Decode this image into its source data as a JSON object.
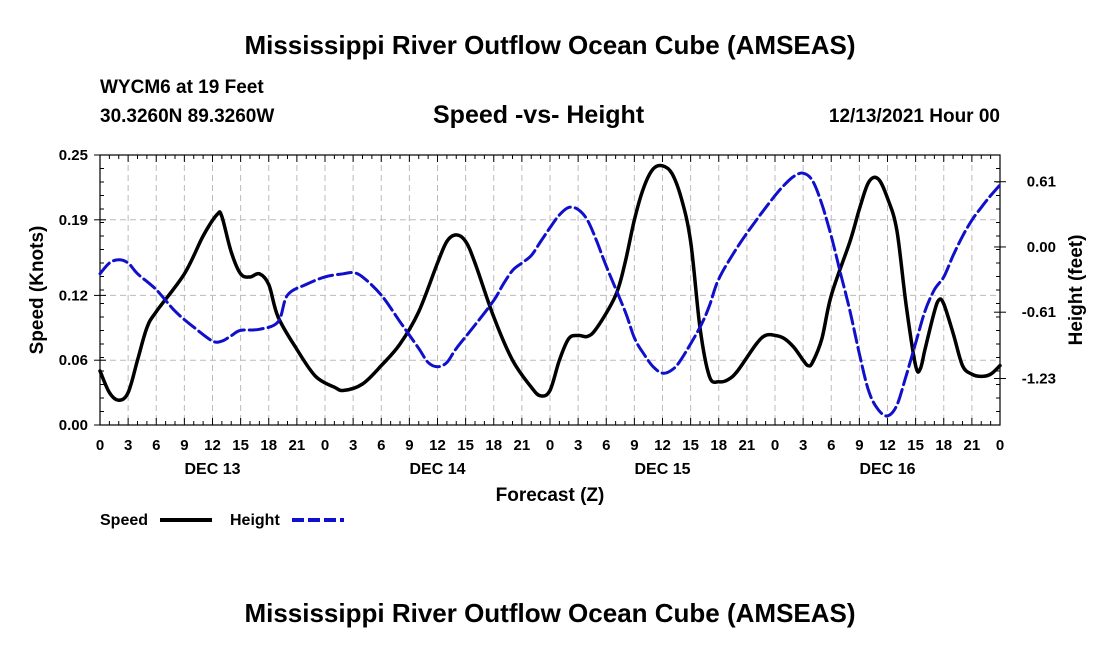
{
  "header": {
    "title": "Mississippi River Outflow Ocean Cube (AMSEAS)",
    "station": "WYCM6 at 19 Feet",
    "coords": "30.3260N  89.3260W",
    "subtitle": "Speed -vs- Height",
    "datetime": "12/13/2021 Hour 00"
  },
  "footer": {
    "title": "Mississippi River Outflow Ocean Cube (AMSEAS)"
  },
  "colors": {
    "speed": "#000000",
    "height": "#1010cc",
    "grid": "#bbbbbb"
  },
  "chart_data": {
    "type": "line",
    "title": "Speed -vs- Height",
    "xlabel": "Forecast (Z)",
    "ylabel_left": "Speed (Knots)",
    "ylabel_right": "Height (feet)",
    "x_range_hours": [
      0,
      96
    ],
    "x_tick_labels": [
      "0",
      "3",
      "6",
      "9",
      "12",
      "15",
      "18",
      "21",
      "0",
      "3",
      "6",
      "9",
      "12",
      "15",
      "18",
      "21",
      "0",
      "3",
      "6",
      "9",
      "12",
      "15",
      "18",
      "21",
      "0",
      "3",
      "6",
      "9",
      "12",
      "15",
      "18",
      "21",
      "0"
    ],
    "day_labels": [
      {
        "hour": 12,
        "label": "DEC 13"
      },
      {
        "hour": 36,
        "label": "DEC 14"
      },
      {
        "hour": 60,
        "label": "DEC 15"
      },
      {
        "hour": 84,
        "label": "DEC 16"
      }
    ],
    "left_axis": {
      "range": [
        0,
        0.25
      ],
      "ticks": [
        0.0,
        0.06,
        0.12,
        0.19,
        0.25
      ],
      "tick_labels": [
        "0.00",
        "0.06",
        "0.12",
        "0.19",
        "0.25"
      ]
    },
    "right_axis": {
      "range": [
        -1.665,
        0.86
      ],
      "ticks": [
        0.61,
        0.0,
        -0.61,
        -1.23
      ],
      "tick_labels": [
        "0.61",
        "0.00",
        "-0.61",
        "-1.23"
      ]
    },
    "legend": [
      {
        "name": "Speed",
        "style": "solid"
      },
      {
        "name": "Height",
        "style": "dashed"
      }
    ],
    "series": [
      {
        "name": "Speed",
        "axis": "left",
        "points": [
          [
            0,
            0.05
          ],
          [
            1,
            0.03
          ],
          [
            2,
            0.023
          ],
          [
            3,
            0.03
          ],
          [
            4,
            0.06
          ],
          [
            5,
            0.09
          ],
          [
            6,
            0.105
          ],
          [
            9,
            0.14
          ],
          [
            11,
            0.175
          ],
          [
            12.5,
            0.195
          ],
          [
            13,
            0.193
          ],
          [
            14,
            0.16
          ],
          [
            15,
            0.14
          ],
          [
            16,
            0.137
          ],
          [
            17,
            0.14
          ],
          [
            18,
            0.13
          ],
          [
            19,
            0.1
          ],
          [
            21,
            0.07
          ],
          [
            23,
            0.045
          ],
          [
            25,
            0.035
          ],
          [
            26,
            0.032
          ],
          [
            28,
            0.038
          ],
          [
            30,
            0.055
          ],
          [
            32,
            0.075
          ],
          [
            34,
            0.105
          ],
          [
            36,
            0.15
          ],
          [
            37,
            0.17
          ],
          [
            38,
            0.176
          ],
          [
            39,
            0.17
          ],
          [
            40,
            0.15
          ],
          [
            42,
            0.1
          ],
          [
            44,
            0.06
          ],
          [
            46,
            0.035
          ],
          [
            47,
            0.027
          ],
          [
            48,
            0.032
          ],
          [
            49,
            0.06
          ],
          [
            50,
            0.08
          ],
          [
            51,
            0.083
          ],
          [
            52,
            0.082
          ],
          [
            53,
            0.09
          ],
          [
            55,
            0.12
          ],
          [
            56,
            0.15
          ],
          [
            57,
            0.19
          ],
          [
            58,
            0.22
          ],
          [
            59,
            0.237
          ],
          [
            60,
            0.24
          ],
          [
            61,
            0.233
          ],
          [
            62,
            0.21
          ],
          [
            63,
            0.17
          ],
          [
            64,
            0.09
          ],
          [
            65,
            0.045
          ],
          [
            66,
            0.04
          ],
          [
            67,
            0.042
          ],
          [
            68,
            0.05
          ],
          [
            70,
            0.075
          ],
          [
            71,
            0.083
          ],
          [
            72,
            0.083
          ],
          [
            73,
            0.08
          ],
          [
            74,
            0.072
          ],
          [
            75,
            0.06
          ],
          [
            75.5,
            0.055
          ],
          [
            76,
            0.058
          ],
          [
            77,
            0.08
          ],
          [
            78,
            0.12
          ],
          [
            80,
            0.17
          ],
          [
            81,
            0.2
          ],
          [
            82,
            0.225
          ],
          [
            83,
            0.228
          ],
          [
            84,
            0.21
          ],
          [
            85,
            0.18
          ],
          [
            86,
            0.11
          ],
          [
            87,
            0.055
          ],
          [
            87.5,
            0.052
          ],
          [
            88,
            0.07
          ],
          [
            89,
            0.105
          ],
          [
            89.5,
            0.116
          ],
          [
            90,
            0.112
          ],
          [
            91,
            0.085
          ],
          [
            92,
            0.055
          ],
          [
            93,
            0.047
          ],
          [
            94,
            0.045
          ],
          [
            95,
            0.047
          ],
          [
            96,
            0.055
          ]
        ]
      },
      {
        "name": "Height",
        "axis": "right",
        "points": [
          [
            0,
            -0.25
          ],
          [
            1,
            -0.15
          ],
          [
            2,
            -0.12
          ],
          [
            3,
            -0.15
          ],
          [
            4,
            -0.25
          ],
          [
            6,
            -0.4
          ],
          [
            8,
            -0.6
          ],
          [
            10,
            -0.75
          ],
          [
            12,
            -0.88
          ],
          [
            13,
            -0.88
          ],
          [
            14,
            -0.83
          ],
          [
            15,
            -0.78
          ],
          [
            17,
            -0.77
          ],
          [
            19,
            -0.7
          ],
          [
            20,
            -0.45
          ],
          [
            22,
            -0.35
          ],
          [
            24,
            -0.28
          ],
          [
            26,
            -0.25
          ],
          [
            27,
            -0.24
          ],
          [
            28,
            -0.28
          ],
          [
            30,
            -0.45
          ],
          [
            32,
            -0.7
          ],
          [
            34,
            -0.95
          ],
          [
            35,
            -1.08
          ],
          [
            36,
            -1.12
          ],
          [
            37,
            -1.08
          ],
          [
            38,
            -0.95
          ],
          [
            40,
            -0.73
          ],
          [
            42,
            -0.5
          ],
          [
            43,
            -0.35
          ],
          [
            44,
            -0.22
          ],
          [
            45,
            -0.15
          ],
          [
            46,
            -0.08
          ],
          [
            47,
            0.05
          ],
          [
            48,
            0.18
          ],
          [
            49,
            0.3
          ],
          [
            50,
            0.37
          ],
          [
            51,
            0.35
          ],
          [
            52,
            0.25
          ],
          [
            53,
            0.05
          ],
          [
            54,
            -0.18
          ],
          [
            56,
            -0.6
          ],
          [
            57,
            -0.85
          ],
          [
            58,
            -1.0
          ],
          [
            59,
            -1.12
          ],
          [
            60,
            -1.18
          ],
          [
            61,
            -1.15
          ],
          [
            62,
            -1.05
          ],
          [
            64,
            -0.75
          ],
          [
            65,
            -0.55
          ],
          [
            66,
            -0.3
          ],
          [
            68,
            0.0
          ],
          [
            70,
            0.25
          ],
          [
            72,
            0.48
          ],
          [
            73,
            0.58
          ],
          [
            74,
            0.66
          ],
          [
            75,
            0.69
          ],
          [
            76,
            0.62
          ],
          [
            77,
            0.4
          ],
          [
            78,
            0.1
          ],
          [
            79,
            -0.25
          ],
          [
            80,
            -0.6
          ],
          [
            81,
            -1.0
          ],
          [
            82,
            -1.35
          ],
          [
            83,
            -1.52
          ],
          [
            84,
            -1.58
          ],
          [
            85,
            -1.48
          ],
          [
            86,
            -1.2
          ],
          [
            87,
            -0.9
          ],
          [
            88,
            -0.6
          ],
          [
            89,
            -0.4
          ],
          [
            90,
            -0.28
          ],
          [
            91,
            -0.08
          ],
          [
            92,
            0.1
          ],
          [
            93,
            0.25
          ],
          [
            94,
            0.37
          ],
          [
            95,
            0.48
          ],
          [
            96,
            0.58
          ]
        ]
      }
    ]
  }
}
